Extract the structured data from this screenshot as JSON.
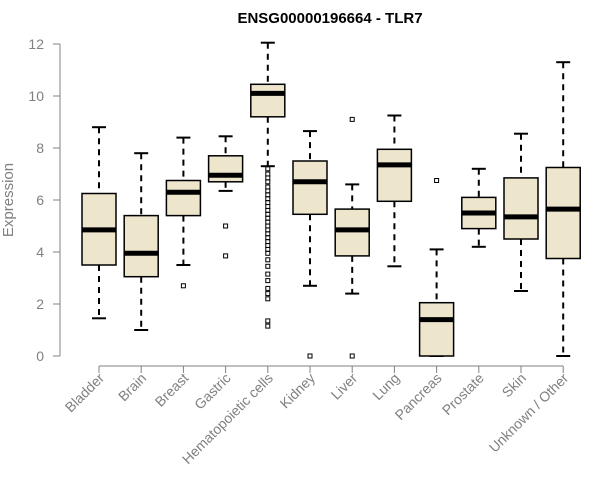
{
  "chart_data": {
    "type": "boxplot",
    "title": "ENSG00000196664 - TLR7",
    "xlabel": "",
    "ylabel": "Expression",
    "ylim": [
      0,
      12
    ],
    "yticks": [
      0,
      2,
      4,
      6,
      8,
      10,
      12
    ],
    "grid": false,
    "categories": [
      "Bladder",
      "Brain",
      "Breast",
      "Gastric",
      "Hematopoietic cells",
      "Kidney",
      "Liver",
      "Lung",
      "Pancreas",
      "Prostate",
      "Skin",
      "Unknown / Other"
    ],
    "boxes": [
      {
        "category": "Bladder",
        "whisker_low": 1.45,
        "q1": 3.5,
        "median": 4.85,
        "q3": 6.25,
        "whisker_high": 8.8,
        "outliers": []
      },
      {
        "category": "Brain",
        "whisker_low": 1.0,
        "q1": 3.05,
        "median": 3.95,
        "q3": 5.4,
        "whisker_high": 7.8,
        "outliers": []
      },
      {
        "category": "Breast",
        "whisker_low": 3.5,
        "q1": 5.4,
        "median": 6.3,
        "q3": 6.75,
        "whisker_high": 8.4,
        "outliers": [
          2.7
        ]
      },
      {
        "category": "Gastric",
        "whisker_low": 6.35,
        "q1": 6.7,
        "median": 6.95,
        "q3": 7.7,
        "whisker_high": 8.45,
        "outliers": [
          5.0,
          3.85
        ]
      },
      {
        "category": "Hematopoietic cells",
        "whisker_low": 7.3,
        "q1": 9.2,
        "median": 10.1,
        "q3": 10.45,
        "whisker_high": 12.05,
        "outliers": [
          7.2,
          7.0,
          6.85,
          6.7,
          6.5,
          6.35,
          6.2,
          6.05,
          5.9,
          5.75,
          5.6,
          5.45,
          5.3,
          5.15,
          5.0,
          4.85,
          4.7,
          4.55,
          4.4,
          4.25,
          4.1,
          3.95,
          3.7,
          3.45,
          3.15,
          2.9,
          2.6,
          2.4,
          2.2,
          1.35,
          1.15
        ]
      },
      {
        "category": "Kidney",
        "whisker_low": 2.7,
        "q1": 5.45,
        "median": 6.7,
        "q3": 7.5,
        "whisker_high": 8.65,
        "outliers": [
          0.0
        ]
      },
      {
        "category": "Liver",
        "whisker_low": 2.4,
        "q1": 3.85,
        "median": 4.85,
        "q3": 5.65,
        "whisker_high": 6.6,
        "outliers": [
          9.1,
          0.0
        ]
      },
      {
        "category": "Lung",
        "whisker_low": 3.45,
        "q1": 5.95,
        "median": 7.35,
        "q3": 7.95,
        "whisker_high": 9.25,
        "outliers": []
      },
      {
        "category": "Pancreas",
        "whisker_low": 0.0,
        "q1": 0.0,
        "median": 1.4,
        "q3": 2.05,
        "whisker_high": 4.1,
        "outliers": [
          6.75
        ]
      },
      {
        "category": "Prostate",
        "whisker_low": 4.2,
        "q1": 4.9,
        "median": 5.5,
        "q3": 6.1,
        "whisker_high": 7.2,
        "outliers": []
      },
      {
        "category": "Skin",
        "whisker_low": 2.5,
        "q1": 4.5,
        "median": 5.35,
        "q3": 6.85,
        "whisker_high": 8.55,
        "outliers": []
      },
      {
        "category": "Unknown / Other",
        "whisker_low": 0.0,
        "q1": 3.75,
        "median": 5.65,
        "q3": 7.25,
        "whisker_high": 11.3,
        "outliers": []
      }
    ],
    "colors": {
      "box_fill": "#ede5cc",
      "box_stroke": "#000000",
      "axis": "#808080",
      "title": "#000000"
    }
  }
}
